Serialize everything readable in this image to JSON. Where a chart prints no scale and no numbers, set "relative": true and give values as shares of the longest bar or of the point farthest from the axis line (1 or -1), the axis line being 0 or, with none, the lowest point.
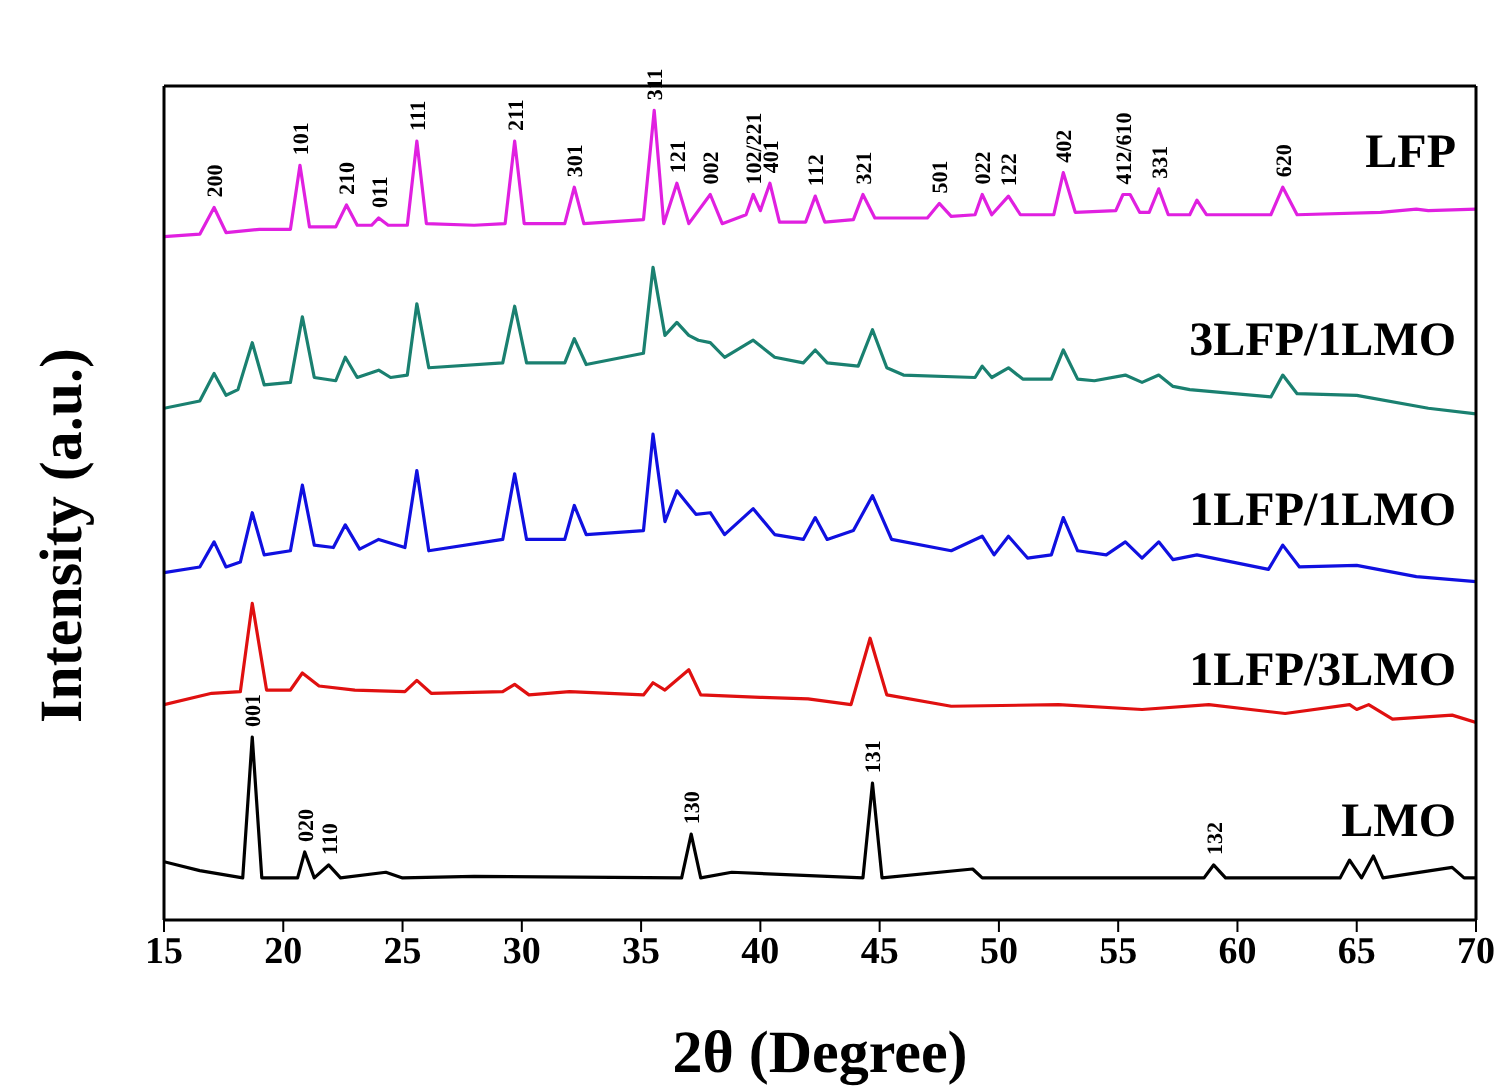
{
  "chart_data": {
    "type": "line",
    "relative": true,
    "xlabel": "2θ (Degree)",
    "ylabel": "Intensity (a.u.)",
    "xlim": [
      15,
      70
    ],
    "xticks": [
      15,
      20,
      25,
      30,
      35,
      40,
      45,
      50,
      55,
      60,
      65,
      70
    ],
    "grid": false,
    "legend": false,
    "series": [
      {
        "name": "LFP",
        "color": "#e020e0",
        "x": [
          15,
          16.5,
          17.1,
          17.6,
          19,
          20.3,
          20.7,
          21.1,
          22.2,
          22.65,
          23.1,
          23.7,
          24.0,
          24.4,
          25.2,
          25.6,
          26.0,
          28,
          29.3,
          29.7,
          30.1,
          31.8,
          32.2,
          32.6,
          35.1,
          35.55,
          35.95,
          36.5,
          37.0,
          37.9,
          38.4,
          39.4,
          39.7,
          40.0,
          40.4,
          40.8,
          41.9,
          42.3,
          42.7,
          43.9,
          44.3,
          44.8,
          47.0,
          47.5,
          48.0,
          49.0,
          49.3,
          49.7,
          50.4,
          50.9,
          52.3,
          52.7,
          53.2,
          54.9,
          55.2,
          55.5,
          55.9,
          56.3,
          56.7,
          57.1,
          58.0,
          58.3,
          58.7,
          61.4,
          61.9,
          62.5,
          66,
          67.5,
          68,
          70
        ],
        "values": [
          0.844,
          0.847,
          0.88,
          0.849,
          0.853,
          0.853,
          0.932,
          0.856,
          0.856,
          0.883,
          0.858,
          0.858,
          0.867,
          0.858,
          0.858,
          0.962,
          0.86,
          0.858,
          0.86,
          0.962,
          0.86,
          0.86,
          0.905,
          0.86,
          0.865,
          1.0,
          0.86,
          0.91,
          0.86,
          0.896,
          0.86,
          0.871,
          0.896,
          0.876,
          0.91,
          0.862,
          0.862,
          0.894,
          0.862,
          0.865,
          0.896,
          0.867,
          0.867,
          0.885,
          0.869,
          0.871,
          0.896,
          0.871,
          0.894,
          0.871,
          0.871,
          0.923,
          0.874,
          0.876,
          0.896,
          0.896,
          0.874,
          0.874,
          0.903,
          0.871,
          0.871,
          0.889,
          0.871,
          0.871,
          0.905,
          0.871,
          0.874,
          0.878,
          0.876,
          0.878
        ]
      },
      {
        "name": "3LFP/1LMO",
        "color": "#1a8070",
        "x": [
          15,
          16.5,
          17.1,
          17.6,
          18.1,
          18.7,
          19.2,
          20.3,
          20.8,
          21.3,
          22.2,
          22.6,
          23.1,
          24.0,
          24.5,
          25.2,
          25.6,
          26.1,
          29.2,
          29.7,
          30.2,
          31.8,
          32.2,
          32.7,
          35.1,
          35.5,
          36.0,
          36.5,
          37.0,
          37.4,
          37.9,
          38.5,
          39.7,
          40.6,
          41.8,
          42.3,
          42.8,
          44.1,
          44.7,
          45.3,
          46,
          49.0,
          49.3,
          49.7,
          50.4,
          51.0,
          52.2,
          52.7,
          53.3,
          54,
          55.3,
          56.0,
          56.7,
          57.3,
          58,
          61.4,
          61.9,
          62.5,
          65,
          68,
          70
        ],
        "values": [
          0.632,
          0.641,
          0.675,
          0.648,
          0.655,
          0.713,
          0.661,
          0.664,
          0.745,
          0.67,
          0.666,
          0.695,
          0.67,
          0.679,
          0.67,
          0.673,
          0.761,
          0.682,
          0.688,
          0.758,
          0.688,
          0.688,
          0.718,
          0.686,
          0.7,
          0.806,
          0.722,
          0.738,
          0.722,
          0.716,
          0.713,
          0.695,
          0.716,
          0.695,
          0.688,
          0.704,
          0.688,
          0.684,
          0.729,
          0.682,
          0.673,
          0.67,
          0.684,
          0.67,
          0.682,
          0.668,
          0.668,
          0.704,
          0.668,
          0.666,
          0.673,
          0.664,
          0.673,
          0.659,
          0.655,
          0.646,
          0.673,
          0.65,
          0.648,
          0.632,
          0.625
        ]
      },
      {
        "name": "1LFP/1LMO",
        "color": "#1010e0",
        "x": [
          15,
          16.5,
          17.1,
          17.6,
          18.2,
          18.7,
          19.2,
          20.3,
          20.8,
          21.3,
          22.1,
          22.6,
          23.2,
          24.0,
          25.1,
          25.6,
          26.1,
          29.2,
          29.7,
          30.2,
          31.8,
          32.2,
          32.7,
          35.1,
          35.5,
          36.0,
          36.5,
          37.3,
          37.9,
          38.5,
          39.7,
          40.6,
          41.8,
          42.3,
          42.8,
          43.9,
          44.7,
          45.5,
          48,
          49.3,
          49.8,
          50.4,
          51.2,
          52.2,
          52.7,
          53.3,
          54.5,
          55.3,
          56,
          56.7,
          57.3,
          58.3,
          61.3,
          61.9,
          62.6,
          65,
          67.5,
          70
        ],
        "values": [
          0.429,
          0.436,
          0.467,
          0.436,
          0.442,
          0.503,
          0.451,
          0.456,
          0.537,
          0.463,
          0.46,
          0.488,
          0.458,
          0.47,
          0.46,
          0.555,
          0.456,
          0.47,
          0.551,
          0.47,
          0.47,
          0.512,
          0.476,
          0.481,
          0.6,
          0.492,
          0.53,
          0.501,
          0.503,
          0.476,
          0.508,
          0.476,
          0.47,
          0.497,
          0.47,
          0.481,
          0.524,
          0.47,
          0.456,
          0.474,
          0.451,
          0.474,
          0.447,
          0.451,
          0.497,
          0.456,
          0.451,
          0.467,
          0.447,
          0.467,
          0.445,
          0.451,
          0.433,
          0.463,
          0.436,
          0.438,
          0.424,
          0.418
        ]
      },
      {
        "name": "1LFP/3LMO",
        "color": "#e01010",
        "x": [
          15,
          17,
          18.2,
          18.7,
          19.3,
          20.3,
          20.8,
          21.5,
          23,
          25.1,
          25.6,
          26.2,
          29.2,
          29.7,
          30.3,
          32,
          35.1,
          35.5,
          36,
          37.0,
          37.5,
          40,
          42,
          43.8,
          44.6,
          45.3,
          48,
          52.5,
          56,
          58.8,
          62,
          64.7,
          65.0,
          65.5,
          66.5,
          69,
          70
        ],
        "values": [
          0.266,
          0.28,
          0.282,
          0.391,
          0.284,
          0.284,
          0.305,
          0.289,
          0.284,
          0.282,
          0.296,
          0.28,
          0.282,
          0.291,
          0.278,
          0.282,
          0.278,
          0.293,
          0.284,
          0.309,
          0.278,
          0.275,
          0.273,
          0.266,
          0.348,
          0.278,
          0.264,
          0.266,
          0.26,
          0.266,
          0.255,
          0.266,
          0.26,
          0.266,
          0.248,
          0.253,
          0.244
        ]
      },
      {
        "name": "LMO",
        "color": "#000000",
        "x": [
          15,
          16.5,
          18.3,
          18.7,
          19.1,
          20.6,
          20.9,
          21.3,
          21.9,
          22.4,
          24.3,
          25,
          28,
          36.7,
          37.1,
          37.5,
          38.8,
          44.3,
          44.7,
          45.1,
          48.9,
          49.3,
          58.6,
          59.0,
          59.5,
          64.3,
          64.7,
          65.2,
          65.7,
          66.1,
          69.0,
          69.5,
          70
        ],
        "values": [
          0.072,
          0.061,
          0.052,
          0.226,
          0.052,
          0.052,
          0.084,
          0.052,
          0.068,
          0.052,
          0.059,
          0.052,
          0.054,
          0.052,
          0.106,
          0.052,
          0.059,
          0.052,
          0.169,
          0.052,
          0.063,
          0.052,
          0.052,
          0.068,
          0.052,
          0.052,
          0.074,
          0.052,
          0.079,
          0.052,
          0.065,
          0.052,
          0.052
        ]
      }
    ],
    "annotations": [
      {
        "text": "200",
        "x": 17.1,
        "y": 0.88
      },
      {
        "text": "101",
        "x": 20.7,
        "y": 0.932
      },
      {
        "text": "210",
        "x": 22.65,
        "y": 0.883
      },
      {
        "text": "011",
        "x": 24.0,
        "y": 0.867
      },
      {
        "text": "111",
        "x": 25.6,
        "y": 0.962
      },
      {
        "text": "211",
        "x": 29.7,
        "y": 0.962
      },
      {
        "text": "301",
        "x": 32.2,
        "y": 0.905
      },
      {
        "text": "311",
        "x": 35.55,
        "y": 1.0
      },
      {
        "text": "121",
        "x": 36.5,
        "y": 0.91
      },
      {
        "text": "002",
        "x": 37.9,
        "y": 0.896
      },
      {
        "text": "102/221",
        "x": 39.7,
        "y": 0.896
      },
      {
        "text": "401",
        "x": 40.4,
        "y": 0.91
      },
      {
        "text": "112",
        "x": 42.3,
        "y": 0.894
      },
      {
        "text": "321",
        "x": 44.3,
        "y": 0.896
      },
      {
        "text": "501",
        "x": 47.5,
        "y": 0.885
      },
      {
        "text": "022",
        "x": 49.3,
        "y": 0.896
      },
      {
        "text": "122",
        "x": 50.4,
        "y": 0.894
      },
      {
        "text": "402",
        "x": 52.7,
        "y": 0.923
      },
      {
        "text": "412/610",
        "x": 55.2,
        "y": 0.896
      },
      {
        "text": "331",
        "x": 56.7,
        "y": 0.903
      },
      {
        "text": "620",
        "x": 61.9,
        "y": 0.905
      },
      {
        "text": "001",
        "x": 18.7,
        "y": 0.226
      },
      {
        "text": "020",
        "x": 20.9,
        "y": 0.084
      },
      {
        "text": "110",
        "x": 21.9,
        "y": 0.068
      },
      {
        "text": "130",
        "x": 37.1,
        "y": 0.106
      },
      {
        "text": "131",
        "x": 44.7,
        "y": 0.169
      },
      {
        "text": "132",
        "x": 59.0,
        "y": 0.068
      }
    ]
  }
}
